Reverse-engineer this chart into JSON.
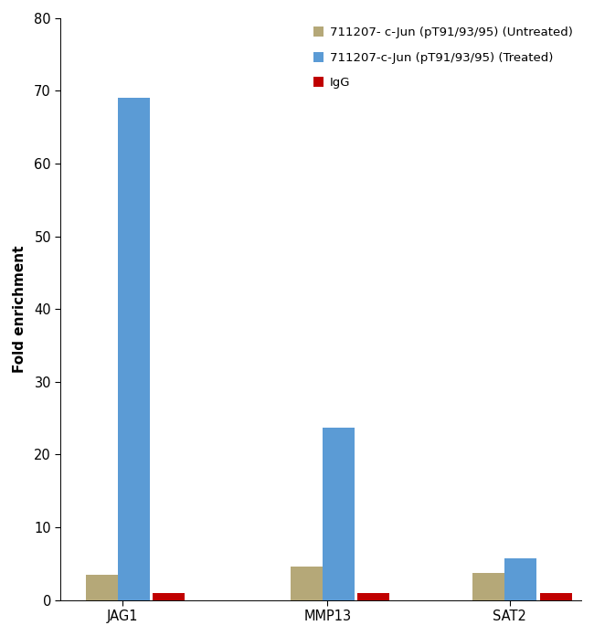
{
  "categories": [
    "JAG1",
    "MMP13",
    "SAT2"
  ],
  "untreated": [
    3.5,
    4.6,
    3.7
  ],
  "treated": [
    69.0,
    23.7,
    5.8
  ],
  "igg": [
    1.0,
    1.0,
    1.0
  ],
  "untreated_color": "#b5a878",
  "treated_color": "#5b9bd5",
  "igg_color": "#c00000",
  "legend_labels": [
    "711207- c-Jun (pT91/93/95) (Untreated)",
    "711207-c-Jun (pT91/93/95) (Treated)",
    "IgG"
  ],
  "ylabel": "Fold enrichment",
  "ylim": [
    0,
    80
  ],
  "yticks": [
    0,
    10,
    20,
    30,
    40,
    50,
    60,
    70,
    80
  ],
  "bar_width": 0.28,
  "background_color": "#ffffff",
  "legend_fontsize": 9.5,
  "axis_fontsize": 11,
  "tick_fontsize": 10.5
}
